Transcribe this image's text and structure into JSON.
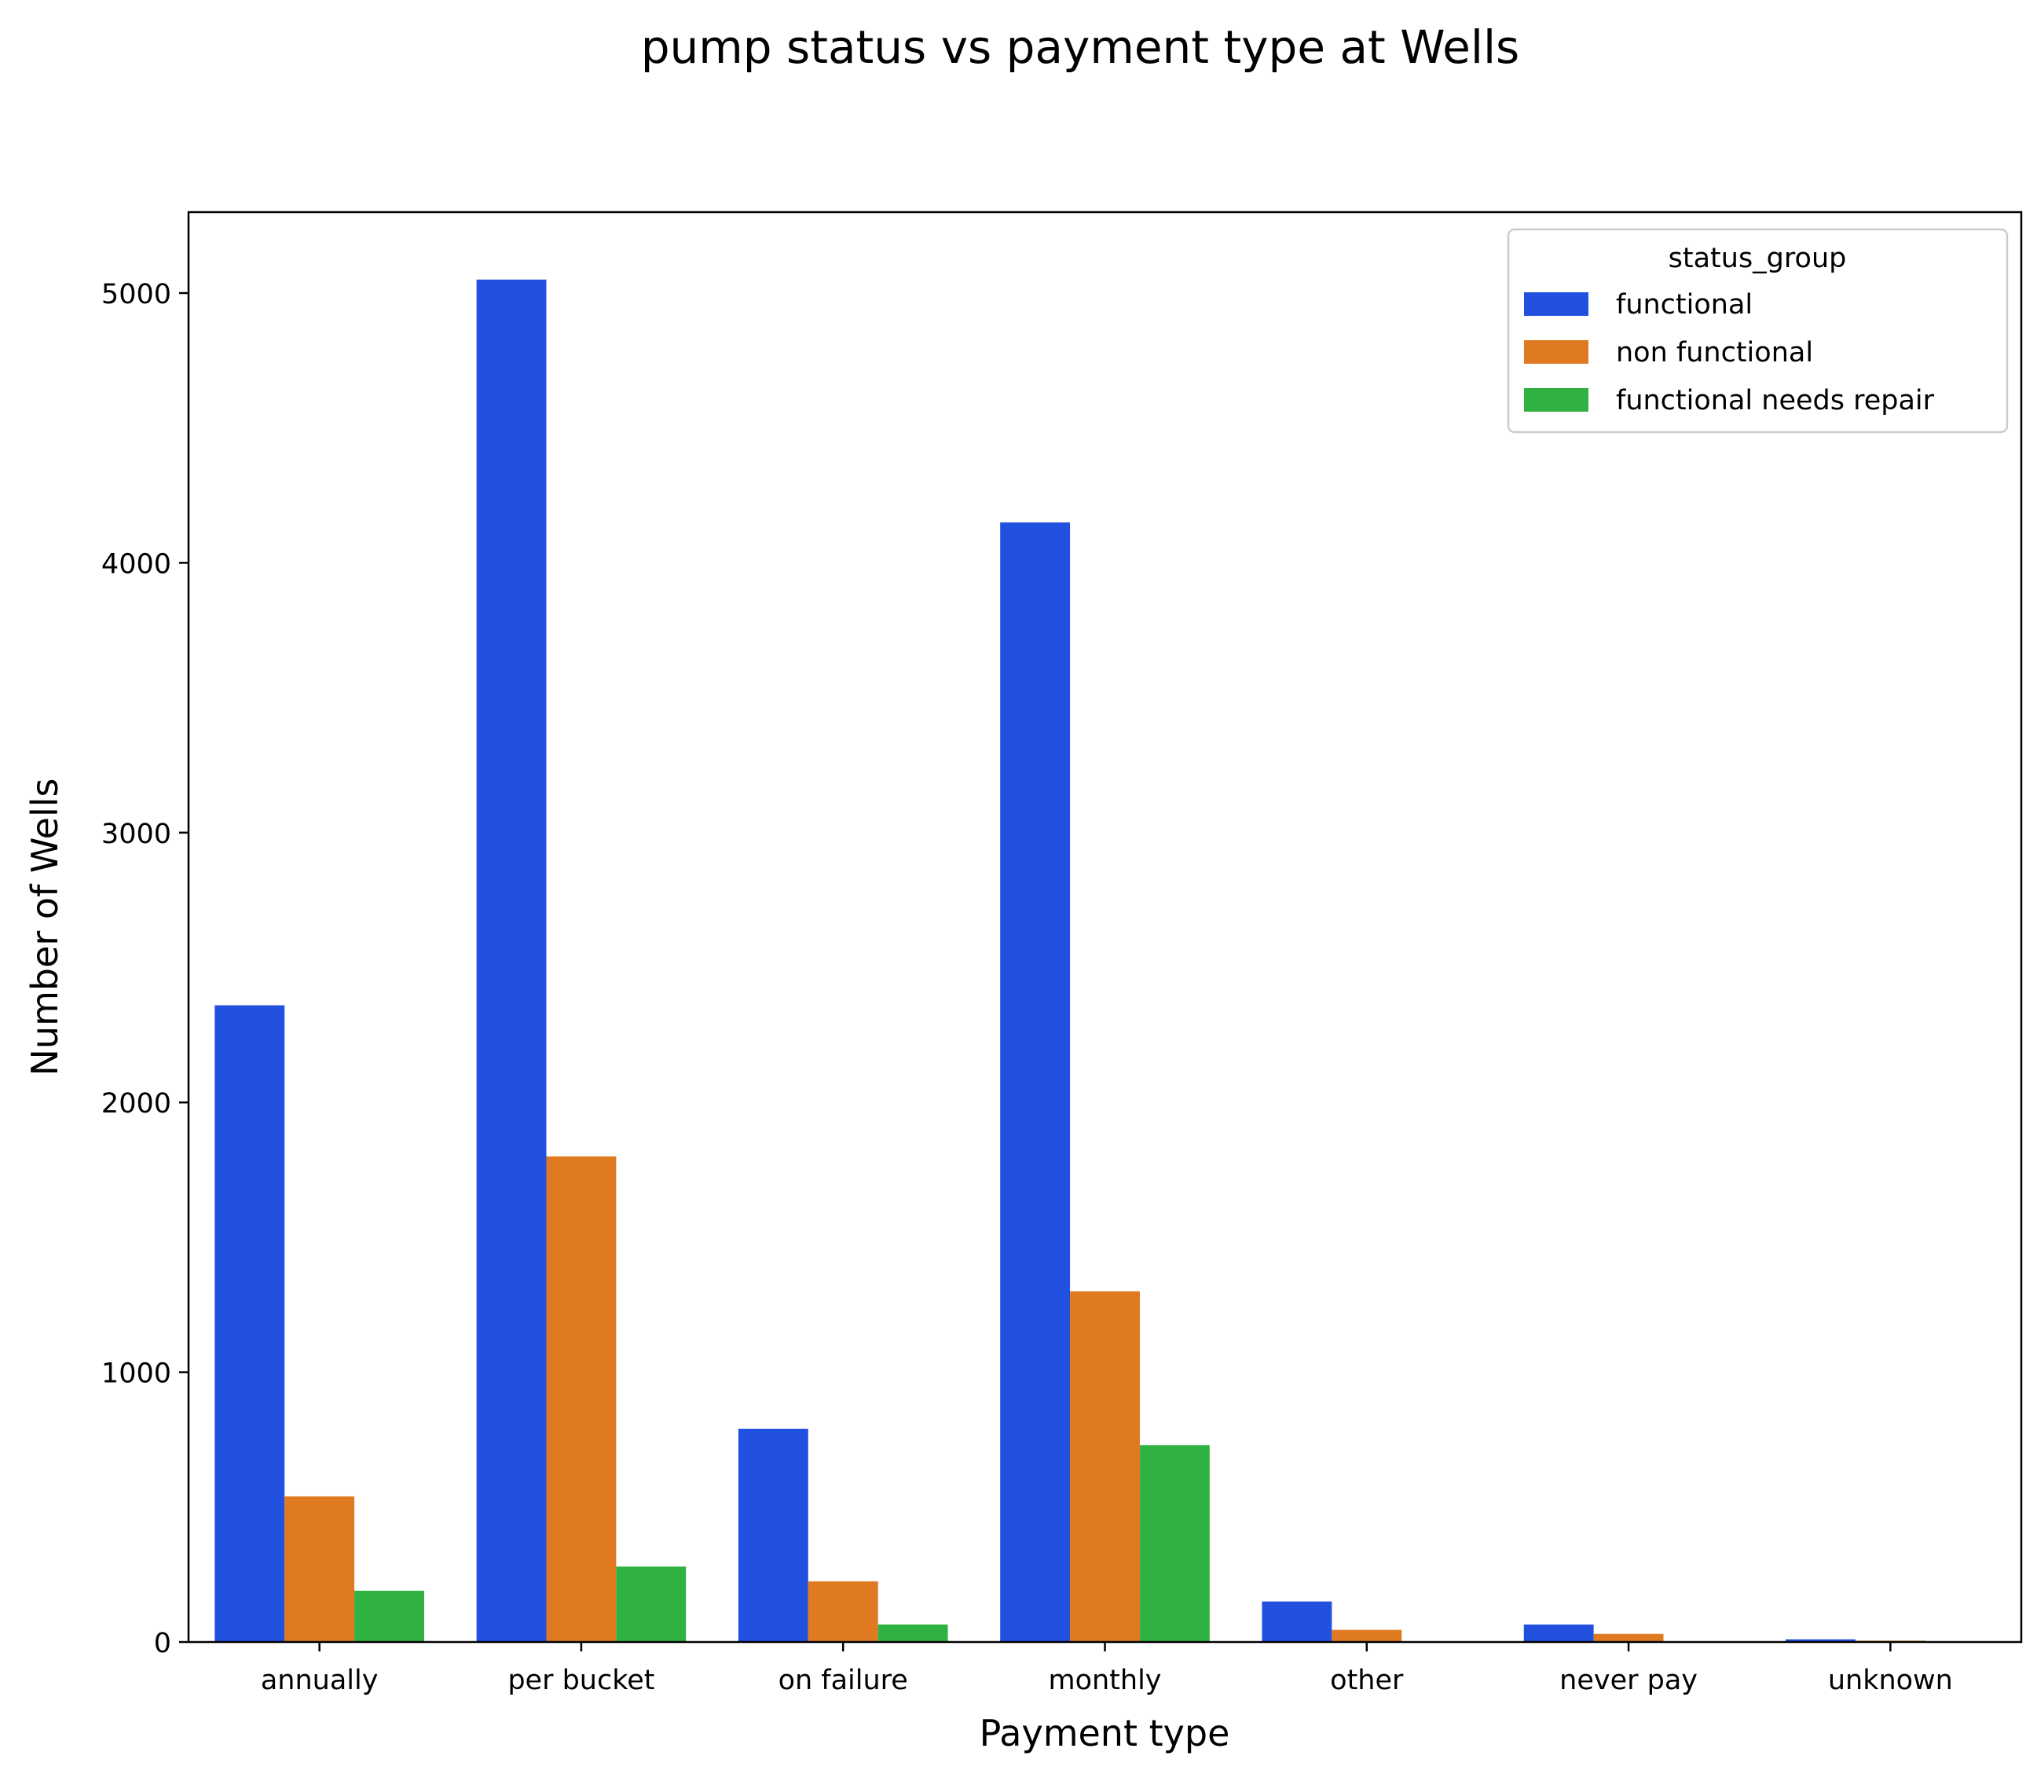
{
  "chart_data": {
    "type": "bar",
    "title": "pump status vs payment type at Wells",
    "xlabel": "Payment type",
    "ylabel": "Number of Wells",
    "categories": [
      "annually",
      "per bucket",
      "on failure",
      "monthly",
      "other",
      "never pay",
      "unknown"
    ],
    "series": [
      {
        "name": "functional",
        "color": "#2250df",
        "values": [
          2360,
          5050,
          790,
          4150,
          150,
          65,
          10
        ]
      },
      {
        "name": "non functional",
        "color": "#df7a20",
        "values": [
          540,
          1800,
          225,
          1300,
          45,
          30,
          5
        ]
      },
      {
        "name": "functional needs repair",
        "color": "#2fb242",
        "values": [
          190,
          280,
          65,
          730,
          0,
          0,
          0
        ]
      }
    ],
    "ylim": [
      0,
      5300
    ],
    "yticks": [
      0,
      1000,
      2000,
      3000,
      4000,
      5000
    ],
    "legend": {
      "title": "status_group",
      "placement": "top-right"
    },
    "grid": false
  }
}
